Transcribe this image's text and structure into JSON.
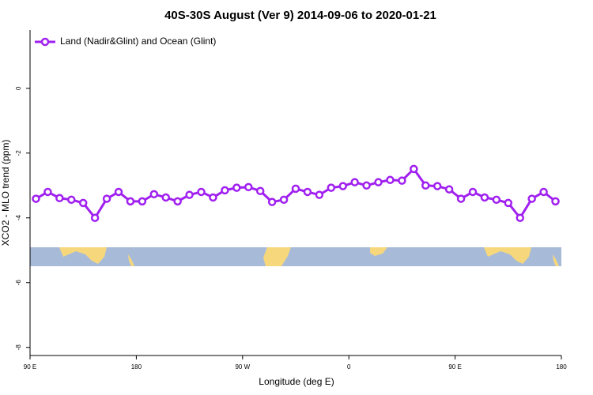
{
  "chart_data": {
    "type": "line",
    "title": "40S-30S August (Ver 9)   2014-09-06 to 2020-01-21",
    "x_label": "Longitude (deg E)",
    "y_label": "XCO2 - MLO trend (ppm)",
    "x": [
      95,
      105,
      115,
      125,
      135,
      145,
      155,
      165,
      175,
      185,
      195,
      205,
      215,
      225,
      235,
      245,
      255,
      265,
      275,
      285,
      295,
      305,
      315,
      325,
      335,
      345,
      355,
      365,
      375,
      385,
      395,
      405,
      415,
      425,
      435,
      445,
      455,
      465,
      475,
      485,
      495,
      505,
      515,
      525,
      535
    ],
    "series": [
      {
        "name": "Land (Nadir&Glint) and Ocean (Glint)",
        "color": "#a020f0",
        "values": [
          -3.41,
          -3.2,
          -3.39,
          -3.44,
          -3.54,
          -4.0,
          -3.41,
          -3.2,
          -3.49,
          -3.49,
          -3.27,
          -3.37,
          -3.49,
          -3.29,
          -3.2,
          -3.37,
          -3.15,
          -3.07,
          -3.05,
          -3.17,
          -3.51,
          -3.44,
          -3.1,
          -3.2,
          -3.29,
          -3.07,
          -3.02,
          -2.9,
          -3.0,
          -2.9,
          -2.83,
          -2.85,
          -2.49,
          -3.0,
          -3.02,
          -3.12,
          -3.41,
          -3.2,
          -3.37,
          -3.44,
          -3.54,
          -4.0,
          -3.41,
          -3.2,
          -3.49
        ]
      }
    ],
    "xlim": [
      90,
      540
    ],
    "xticks": [
      {
        "value": 90,
        "label": "90 E"
      },
      {
        "value": 180,
        "label": "180"
      },
      {
        "value": 270,
        "label": "90 W"
      },
      {
        "value": 360,
        "label": "0"
      },
      {
        "value": 450,
        "label": "90 E"
      },
      {
        "value": 540,
        "label": "180"
      }
    ],
    "ylim": [
      -8.25,
      1.8
    ],
    "yticks": [
      0,
      -2,
      -4,
      -6,
      -8
    ],
    "legend": "top-left"
  }
}
